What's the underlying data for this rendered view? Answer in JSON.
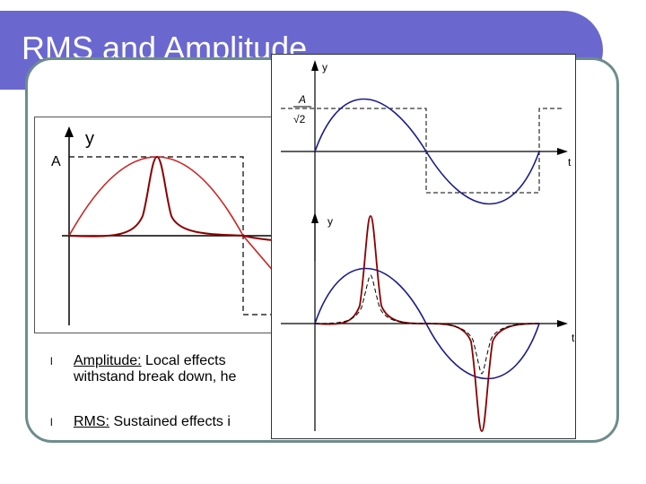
{
  "slide": {
    "title": "RMS and Amplitude"
  },
  "left_figure": {
    "y_label": "y",
    "a_label": "A"
  },
  "bullets": [
    {
      "marker": "l",
      "term": "Amplitude:",
      "text": " Local effects",
      "line2": "withstand break down, he"
    },
    {
      "marker": "l",
      "term": "RMS:",
      "text": " Sustained effects i"
    }
  ],
  "overlay": {
    "top_plot": {
      "y_label": "y",
      "t_label": "t",
      "amp_num": "A",
      "amp_den": "√2"
    },
    "bottom_plot": {
      "y_label": "y",
      "t_label": "t"
    }
  },
  "colors": {
    "title_bar": "#6a68cf",
    "frame": "#6e8c8c",
    "sine": "#1a1a8c",
    "peaked": "#8b0000",
    "red_curve": "#cc2222"
  }
}
